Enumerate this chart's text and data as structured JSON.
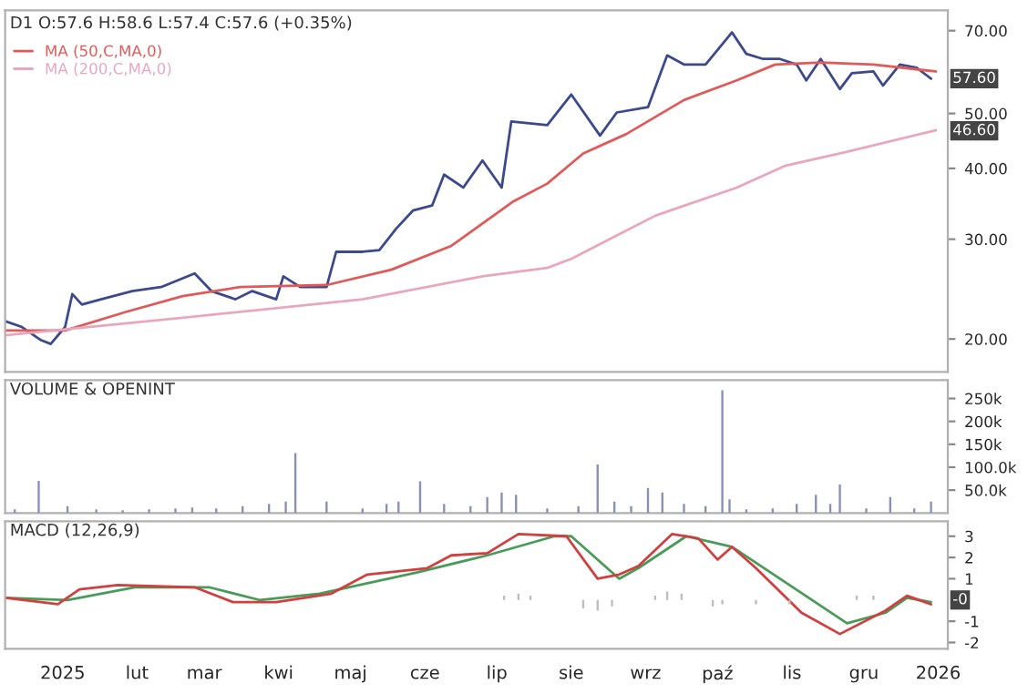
{
  "chart_data": [
    {
      "type": "line",
      "title": "D1 O:57.6 H:58.6 L:57.4 C:57.6 (+0.35%)",
      "log": true,
      "legend": "top left",
      "tick_labels": "y",
      "xlim": [
        "2024-12-08",
        "2026-01-05"
      ],
      "ylim": [
        17.5,
        76
      ],
      "yticks": [
        {
          "value": 20,
          "label": "20.00"
        },
        {
          "value": 30,
          "label": "30.00"
        },
        {
          "value": 40,
          "label": "40.00"
        },
        {
          "value": 50,
          "label": "50.00"
        },
        {
          "value": 70,
          "label": "70.00"
        }
      ],
      "series": [
        {
          "color": "#3c4a8c",
          "x": [
            "2024-12-08",
            "2024-12-15",
            "2024-12-23",
            "2024-12-27",
            "2025-01-02",
            "2025-01-05",
            "2025-01-09",
            "2025-01-17",
            "2025-01-30",
            "2025-02-11",
            "2025-02-25",
            "2025-03-04",
            "2025-03-14",
            "2025-03-21",
            "2025-03-31",
            "2025-04-03",
            "2025-04-10",
            "2025-04-21",
            "2025-04-25",
            "2025-05-06",
            "2025-05-13",
            "2025-05-20",
            "2025-05-27",
            "2025-06-04",
            "2025-06-09",
            "2025-06-17",
            "2025-06-25",
            "2025-07-03",
            "2025-07-07",
            "2025-07-22",
            "2025-08-01",
            "2025-08-13",
            "2025-08-20",
            "2025-09-02",
            "2025-09-10",
            "2025-09-17",
            "2025-09-26",
            "2025-10-07",
            "2025-10-13",
            "2025-10-20",
            "2025-10-27",
            "2025-11-03",
            "2025-11-07",
            "2025-11-13",
            "2025-11-21",
            "2025-11-26",
            "2025-12-05",
            "2025-12-09",
            "2025-12-16",
            "2025-12-23",
            "2025-12-29"
          ],
          "values": [
            21.5,
            21.0,
            19.9,
            19.6,
            21.0,
            24.0,
            23.0,
            23.5,
            24.3,
            24.7,
            26.1,
            24.3,
            23.5,
            24.3,
            23.5,
            25.8,
            24.7,
            24.7,
            28.5,
            28.5,
            28.7,
            31.3,
            33.7,
            34.4,
            39.0,
            37.0,
            41.3,
            37.0,
            48.4,
            47.7,
            54.0,
            45.7,
            50.2,
            51.3,
            63.3,
            61.0,
            61.0,
            69.5,
            63.7,
            62.4,
            62.4,
            61.0,
            57.2,
            62.4,
            55.2,
            58.9,
            59.3,
            56.0,
            61.0,
            60.2,
            57.6
          ]
        },
        {
          "name": "MA (50,C,MA,0)",
          "color": "#e05a5a",
          "x": [
            "2024-12-08",
            "2025-01-02",
            "2025-01-27",
            "2025-02-20",
            "2025-03-16",
            "2025-04-21",
            "2025-05-18",
            "2025-06-12",
            "2025-07-08",
            "2025-07-22",
            "2025-08-06",
            "2025-08-24",
            "2025-09-17",
            "2025-10-09",
            "2025-10-25",
            "2025-11-13",
            "2025-12-05",
            "2025-12-31"
          ],
          "values": [
            20.7,
            20.7,
            22.3,
            23.8,
            24.7,
            24.9,
            26.5,
            29.2,
            35.0,
            37.6,
            42.5,
            46.0,
            52.8,
            57.2,
            61.0,
            61.5,
            61.0,
            59.3
          ]
        },
        {
          "name": "MA (200,C,MA,0)",
          "color": "#e8a8bc",
          "x": [
            "2024-12-08",
            "2025-02-20",
            "2025-05-06",
            "2025-06-25",
            "2025-07-22",
            "2025-08-01",
            "2025-09-05",
            "2025-10-09",
            "2025-10-29",
            "2025-11-24",
            "2025-12-31"
          ],
          "values": [
            20.3,
            21.8,
            23.5,
            25.8,
            26.7,
            27.7,
            33.0,
            37.0,
            40.4,
            42.8,
            46.7
          ]
        }
      ],
      "annotations": [
        {
          "text": "57.60",
          "x": "2025-12-29",
          "y": 57.6
        },
        {
          "text": "46.60",
          "x": "2025-12-31",
          "y": 46.6
        }
      ]
    },
    {
      "type": "bar",
      "title": "VOLUME & OPENINT",
      "tick_labels": "y",
      "xlim": [
        "2024-12-08",
        "2026-01-05"
      ],
      "ylim": [
        0,
        290000
      ],
      "yticks": [
        {
          "value": 50000,
          "label": "50.0k"
        },
        {
          "value": 100000,
          "label": "100.0k"
        },
        {
          "value": 150000,
          "label": "150k"
        },
        {
          "value": 200000,
          "label": "200k"
        },
        {
          "value": 250000,
          "label": "250k"
        }
      ],
      "series": [
        {
          "color": "#8890b8",
          "x": [
            "2024-12-12",
            "2024-12-22",
            "2025-01-03",
            "2025-01-15",
            "2025-01-26",
            "2025-02-06",
            "2025-02-17",
            "2025-02-24",
            "2025-03-06",
            "2025-03-17",
            "2025-03-28",
            "2025-04-04",
            "2025-04-08",
            "2025-04-21",
            "2025-05-06",
            "2025-05-16",
            "2025-05-21",
            "2025-05-30",
            "2025-06-09",
            "2025-06-20",
            "2025-06-27",
            "2025-07-03",
            "2025-07-09",
            "2025-07-22",
            "2025-08-04",
            "2025-08-12",
            "2025-08-19",
            "2025-08-26",
            "2025-09-02",
            "2025-09-08",
            "2025-09-17",
            "2025-09-26",
            "2025-10-03",
            "2025-10-06",
            "2025-10-13",
            "2025-10-24",
            "2025-11-03",
            "2025-11-11",
            "2025-11-17",
            "2025-11-21",
            "2025-12-02",
            "2025-12-12",
            "2025-12-22",
            "2025-12-29"
          ],
          "values": [
            8000,
            70000,
            15000,
            8000,
            6000,
            8000,
            10000,
            12000,
            10000,
            15000,
            20000,
            25000,
            131000,
            25000,
            10000,
            20000,
            25000,
            69000,
            20000,
            15000,
            35000,
            45000,
            40000,
            10000,
            15000,
            106000,
            25000,
            15000,
            55000,
            45000,
            20000,
            15000,
            268000,
            30000,
            8000,
            10000,
            20000,
            40000,
            20000,
            62000,
            10000,
            35000,
            10000,
            25000
          ]
        }
      ]
    },
    {
      "type": "line",
      "title": "MACD (12,26,9)",
      "xlim": [
        "2024-12-08",
        "2026-01-05"
      ],
      "xticks": [
        {
          "value": "2025-01-01",
          "label": "2025"
        },
        {
          "value": "2025-02-01",
          "label": "lut"
        },
        {
          "value": "2025-03-01",
          "label": "mar"
        },
        {
          "value": "2025-04-01",
          "label": "kwi"
        },
        {
          "value": "2025-05-01",
          "label": "maj"
        },
        {
          "value": "2025-06-01",
          "label": "cze"
        },
        {
          "value": "2025-07-01",
          "label": "lip"
        },
        {
          "value": "2025-08-01",
          "label": "sie"
        },
        {
          "value": "2025-09-01",
          "label": "wrz"
        },
        {
          "value": "2025-10-01",
          "label": "paź"
        },
        {
          "value": "2025-11-01",
          "label": "lis"
        },
        {
          "value": "2025-12-01",
          "label": "gru"
        },
        {
          "value": "2026-01-01",
          "label": "2026"
        }
      ],
      "ylim": [
        -2.3,
        3.7
      ],
      "yticks": [
        -2,
        -1,
        1,
        2,
        3
      ],
      "series": [
        {
          "type": "bar",
          "color": "#bdbdbd",
          "x": [
            "2025-07-04",
            "2025-07-10",
            "2025-07-15",
            "2025-08-06",
            "2025-08-12",
            "2025-08-18",
            "2025-09-05",
            "2025-09-10",
            "2025-09-16",
            "2025-09-29",
            "2025-10-03",
            "2025-10-17",
            "2025-10-31",
            "2025-11-28",
            "2025-12-05"
          ],
          "values": [
            0.2,
            0.3,
            0.2,
            -0.4,
            -0.5,
            -0.3,
            0.2,
            0.4,
            0.3,
            -0.3,
            -0.2,
            -0.2,
            -0.2,
            0.2,
            0.2
          ]
        },
        {
          "color": "#4a9a5a",
          "x": [
            "2024-12-08",
            "2025-01-03",
            "2025-01-31",
            "2025-03-03",
            "2025-03-24",
            "2025-04-18",
            "2025-05-29",
            "2025-06-27",
            "2025-07-25",
            "2025-08-01",
            "2025-08-21",
            "2025-08-29",
            "2025-09-18",
            "2025-10-07",
            "2025-11-24",
            "2025-12-10",
            "2025-12-19",
            "2025-12-29"
          ],
          "values": [
            0.1,
            0,
            0.6,
            0.6,
            0,
            0.3,
            1.3,
            2.1,
            3.0,
            3.0,
            1.0,
            1.5,
            3.0,
            2.5,
            -1.1,
            -0.6,
            0.1,
            -0.1
          ]
        },
        {
          "color": "#d04040",
          "x": [
            "2024-12-08",
            "2024-12-30",
            "2025-01-08",
            "2025-01-24",
            "2025-02-25",
            "2025-03-13",
            "2025-03-31",
            "2025-04-23",
            "2025-05-08",
            "2025-06-02",
            "2025-06-12",
            "2025-06-27",
            "2025-07-10",
            "2025-07-30",
            "2025-08-12",
            "2025-08-21",
            "2025-08-29",
            "2025-09-12",
            "2025-09-23",
            "2025-10-01",
            "2025-10-07",
            "2025-10-17",
            "2025-11-05",
            "2025-11-21",
            "2025-12-10",
            "2025-12-19",
            "2025-12-29"
          ],
          "values": [
            0.1,
            -0.2,
            0.5,
            0.7,
            0.6,
            -0.1,
            -0.1,
            0.3,
            1.2,
            1.5,
            2.1,
            2.2,
            3.1,
            3.0,
            1.0,
            1.2,
            1.6,
            3.1,
            2.9,
            1.9,
            2.5,
            1.5,
            -0.6,
            -1.6,
            -0.5,
            0.2,
            -0.2
          ]
        }
      ],
      "annotations": [
        {
          "text": "-0",
          "x": "2025-12-29",
          "y": 0
        }
      ]
    }
  ]
}
